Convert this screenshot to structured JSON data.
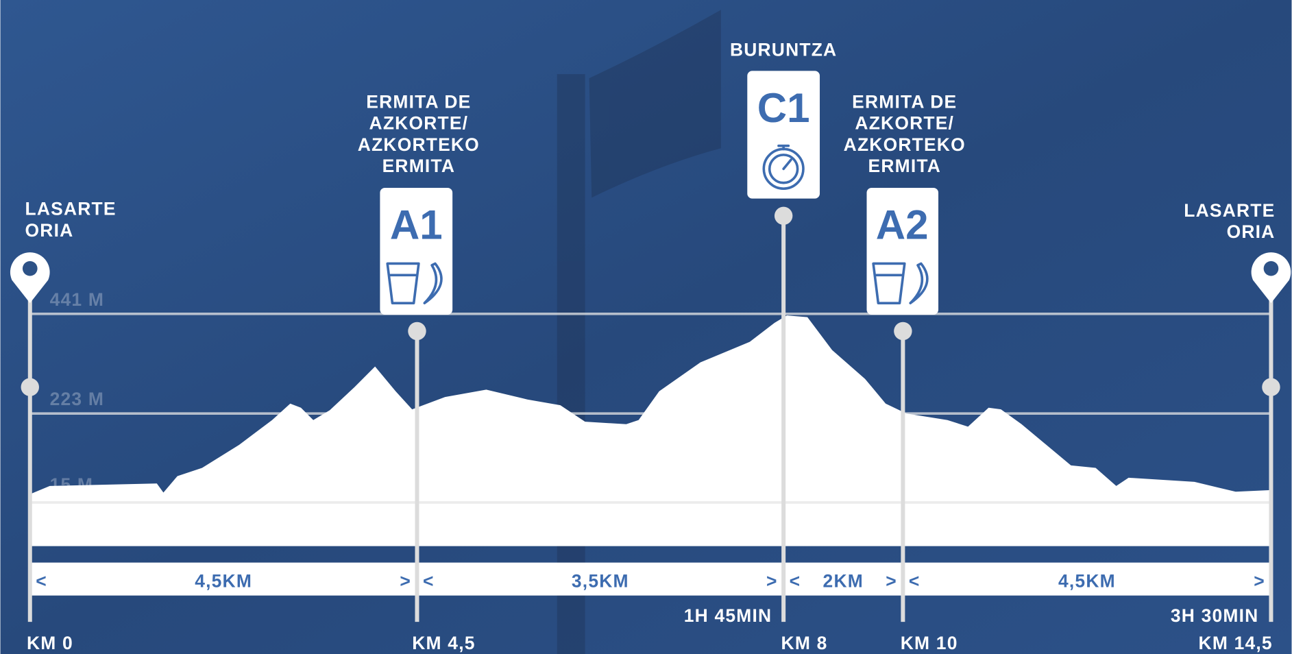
{
  "start": {
    "lines": [
      "LASARTE",
      "ORIA"
    ],
    "km": "KM 0"
  },
  "finish": {
    "lines": [
      "LASARTE",
      "ORIA"
    ],
    "km": "KM 14,5",
    "time": "3H 30MIN"
  },
  "elevation_labels": [
    "441 M",
    "223 M",
    "15 M"
  ],
  "stations": [
    {
      "code": "A1",
      "lines": [
        "ERMITA DE",
        "AZKORTE/",
        "AZKORTEKO",
        "ERMITA"
      ],
      "km": "KM 4,5"
    },
    {
      "code": "C1",
      "lines": [
        "BURUNTZA"
      ],
      "km": "KM 8",
      "time": "1H 45MIN"
    },
    {
      "code": "A2",
      "lines": [
        "ERMITA DE",
        "AZKORTE/",
        "AZKORTEKO",
        "ERMITA"
      ],
      "km": "KM 10"
    }
  ],
  "segments": [
    "4,5KM",
    "3,5KM",
    "2KM",
    "4,5KM"
  ],
  "segment_arrows": [
    "<",
    ">"
  ]
}
